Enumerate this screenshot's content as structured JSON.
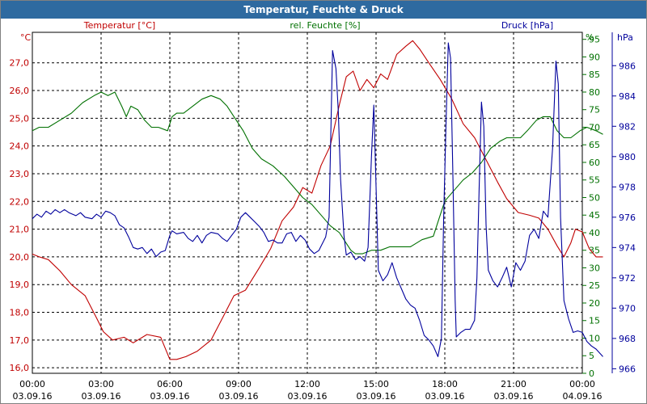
{
  "window": {
    "title": "Temperatur, Feuchte & Druck"
  },
  "colors": {
    "temperature": "#c00000",
    "humidity": "#007000",
    "pressure": "#00009c",
    "titlebar": "#2e6aa0",
    "grid": "#000000"
  },
  "chart_data": {
    "type": "line",
    "title": "Temperatur, Feuchte & Druck",
    "grid": true,
    "x_ticks": [
      {
        "time": "00:00",
        "date": "03.09.16"
      },
      {
        "time": "03:00",
        "date": "03.09.16"
      },
      {
        "time": "06:00",
        "date": "03.09.16"
      },
      {
        "time": "09:00",
        "date": "03.09.16"
      },
      {
        "time": "12:00",
        "date": "03.09.16"
      },
      {
        "time": "15:00",
        "date": "03.09.16"
      },
      {
        "time": "18:00",
        "date": "03.09.16"
      },
      {
        "time": "21:00",
        "date": "03.09.16"
      },
      {
        "time": "00:00",
        "date": "04.09.16"
      }
    ],
    "axes": {
      "temperature": {
        "label": "Temperatur [°C]",
        "unit": "°C",
        "range": [
          15.8,
          28.1
        ],
        "ticks": [
          "16,0",
          "17,0",
          "18,0",
          "19,0",
          "20,0",
          "21,0",
          "22,0",
          "23,0",
          "24,0",
          "25,0",
          "26,0",
          "27,0"
        ],
        "tick_values": [
          16,
          17,
          18,
          19,
          20,
          21,
          22,
          23,
          24,
          25,
          26,
          27
        ]
      },
      "humidity": {
        "label": "rel. Feuchte [%]",
        "unit": "%",
        "range": [
          0,
          97
        ],
        "ticks": [
          "0",
          "5",
          "10",
          "15",
          "20",
          "25",
          "30",
          "35",
          "40",
          "45",
          "50",
          "55",
          "60",
          "65",
          "70",
          "75",
          "80",
          "85",
          "90",
          "95"
        ],
        "tick_values": [
          0,
          5,
          10,
          15,
          20,
          25,
          30,
          35,
          40,
          45,
          50,
          55,
          60,
          65,
          70,
          75,
          80,
          85,
          90,
          95
        ]
      },
      "pressure": {
        "label": "Druck [hPa]",
        "unit": "hPa",
        "range": [
          965.7,
          988.2
        ],
        "ticks": [
          "966",
          "968",
          "970",
          "972",
          "974",
          "976",
          "978",
          "980",
          "982",
          "984",
          "986"
        ],
        "tick_values": [
          966,
          968,
          970,
          972,
          974,
          976,
          978,
          980,
          982,
          984,
          986
        ]
      }
    },
    "series": [
      {
        "name": "Temperatur [°C]",
        "axis": "temperature",
        "points": [
          [
            0,
            20.1
          ],
          [
            0.3,
            20.0
          ],
          [
            0.7,
            19.9
          ],
          [
            1.2,
            19.5
          ],
          [
            1.7,
            19.0
          ],
          [
            2.3,
            18.6
          ],
          [
            2.8,
            17.8
          ],
          [
            3.1,
            17.3
          ],
          [
            3.5,
            17.0
          ],
          [
            4.0,
            17.1
          ],
          [
            4.4,
            16.9
          ],
          [
            5.0,
            17.2
          ],
          [
            5.6,
            17.1
          ],
          [
            6.0,
            16.3
          ],
          [
            6.3,
            16.3
          ],
          [
            6.7,
            16.4
          ],
          [
            7.2,
            16.6
          ],
          [
            7.8,
            17.0
          ],
          [
            8.3,
            17.8
          ],
          [
            8.8,
            18.6
          ],
          [
            9.3,
            18.8
          ],
          [
            9.9,
            19.6
          ],
          [
            10.4,
            20.3
          ],
          [
            10.9,
            21.3
          ],
          [
            11.4,
            21.8
          ],
          [
            11.8,
            22.5
          ],
          [
            12.2,
            22.3
          ],
          [
            12.6,
            23.3
          ],
          [
            13.0,
            24.0
          ],
          [
            13.4,
            25.5
          ],
          [
            13.7,
            26.5
          ],
          [
            14.0,
            26.7
          ],
          [
            14.3,
            26.0
          ],
          [
            14.6,
            26.4
          ],
          [
            14.9,
            26.1
          ],
          [
            15.2,
            26.6
          ],
          [
            15.5,
            26.4
          ],
          [
            15.9,
            27.3
          ],
          [
            16.3,
            27.6
          ],
          [
            16.6,
            27.8
          ],
          [
            16.9,
            27.5
          ],
          [
            17.3,
            27.0
          ],
          [
            17.8,
            26.4
          ],
          [
            18.3,
            25.7
          ],
          [
            18.8,
            24.8
          ],
          [
            19.3,
            24.3
          ],
          [
            19.8,
            23.5
          ],
          [
            20.3,
            22.7
          ],
          [
            20.7,
            22.1
          ],
          [
            21.2,
            21.6
          ],
          [
            21.7,
            21.5
          ],
          [
            22.1,
            21.4
          ],
          [
            22.5,
            21.0
          ],
          [
            22.9,
            20.4
          ],
          [
            23.2,
            20.0
          ],
          [
            23.5,
            20.5
          ],
          [
            23.7,
            21.0
          ],
          [
            24.0,
            20.9
          ],
          [
            24.3,
            20.3
          ],
          [
            24.6,
            20.0
          ],
          [
            24.9,
            20.0
          ]
        ]
      },
      {
        "name": "rel. Feuchte [%]",
        "axis": "humidity",
        "points": [
          [
            0,
            69
          ],
          [
            0.3,
            70
          ],
          [
            0.7,
            70
          ],
          [
            1.2,
            72
          ],
          [
            1.7,
            74
          ],
          [
            2.2,
            77
          ],
          [
            2.7,
            79
          ],
          [
            3.0,
            80
          ],
          [
            3.3,
            79
          ],
          [
            3.6,
            80
          ],
          [
            3.9,
            76
          ],
          [
            4.1,
            73
          ],
          [
            4.3,
            76
          ],
          [
            4.6,
            75
          ],
          [
            4.9,
            72
          ],
          [
            5.2,
            70
          ],
          [
            5.5,
            70
          ],
          [
            5.9,
            69
          ],
          [
            6.1,
            73
          ],
          [
            6.3,
            74
          ],
          [
            6.6,
            74
          ],
          [
            7.0,
            76
          ],
          [
            7.4,
            78
          ],
          [
            7.8,
            79
          ],
          [
            8.2,
            78
          ],
          [
            8.5,
            76
          ],
          [
            8.8,
            73
          ],
          [
            9.2,
            69
          ],
          [
            9.6,
            64
          ],
          [
            10.0,
            61
          ],
          [
            10.5,
            59
          ],
          [
            11.0,
            56
          ],
          [
            11.4,
            53
          ],
          [
            11.8,
            50
          ],
          [
            12.2,
            48
          ],
          [
            12.6,
            45
          ],
          [
            13.0,
            42
          ],
          [
            13.4,
            40
          ],
          [
            13.6,
            38
          ],
          [
            13.9,
            35
          ],
          [
            14.1,
            34
          ],
          [
            14.4,
            34
          ],
          [
            14.8,
            35
          ],
          [
            15.2,
            35
          ],
          [
            15.6,
            36
          ],
          [
            16.0,
            36
          ],
          [
            16.5,
            36
          ],
          [
            17.0,
            38
          ],
          [
            17.5,
            39
          ],
          [
            17.8,
            45
          ],
          [
            18.0,
            49
          ],
          [
            18.4,
            52
          ],
          [
            18.8,
            55
          ],
          [
            19.2,
            57
          ],
          [
            19.6,
            60
          ],
          [
            20.0,
            64
          ],
          [
            20.4,
            66
          ],
          [
            20.7,
            67
          ],
          [
            21.0,
            67
          ],
          [
            21.3,
            67
          ],
          [
            21.6,
            69
          ],
          [
            22.0,
            72
          ],
          [
            22.3,
            73
          ],
          [
            22.6,
            73
          ],
          [
            22.9,
            69
          ],
          [
            23.2,
            67
          ],
          [
            23.5,
            67
          ],
          [
            23.9,
            69
          ],
          [
            24.2,
            70
          ],
          [
            24.6,
            69
          ],
          [
            24.9,
            68
          ]
        ]
      },
      {
        "name": "Druck [hPa]",
        "axis": "pressure",
        "points": [
          [
            0,
            975.9
          ],
          [
            0.2,
            976.2
          ],
          [
            0.4,
            976.0
          ],
          [
            0.6,
            976.4
          ],
          [
            0.8,
            976.2
          ],
          [
            1.0,
            976.5
          ],
          [
            1.2,
            976.3
          ],
          [
            1.4,
            976.5
          ],
          [
            1.6,
            976.3
          ],
          [
            1.9,
            976.1
          ],
          [
            2.1,
            976.3
          ],
          [
            2.3,
            976.0
          ],
          [
            2.6,
            975.9
          ],
          [
            2.8,
            976.2
          ],
          [
            3.0,
            976.0
          ],
          [
            3.2,
            976.4
          ],
          [
            3.4,
            976.3
          ],
          [
            3.6,
            976.1
          ],
          [
            3.8,
            975.5
          ],
          [
            4.0,
            975.3
          ],
          [
            4.2,
            974.7
          ],
          [
            4.4,
            974.0
          ],
          [
            4.6,
            973.9
          ],
          [
            4.8,
            974.0
          ],
          [
            5.0,
            973.6
          ],
          [
            5.2,
            973.9
          ],
          [
            5.4,
            973.4
          ],
          [
            5.6,
            973.7
          ],
          [
            5.8,
            973.8
          ],
          [
            6.0,
            974.8
          ],
          [
            6.1,
            975.1
          ],
          [
            6.3,
            974.9
          ],
          [
            6.6,
            975.0
          ],
          [
            6.8,
            974.6
          ],
          [
            7.0,
            974.4
          ],
          [
            7.2,
            974.8
          ],
          [
            7.4,
            974.3
          ],
          [
            7.6,
            974.8
          ],
          [
            7.8,
            975.0
          ],
          [
            8.1,
            974.9
          ],
          [
            8.3,
            974.6
          ],
          [
            8.5,
            974.4
          ],
          [
            8.7,
            974.8
          ],
          [
            8.9,
            975.2
          ],
          [
            9.1,
            976.0
          ],
          [
            9.3,
            976.3
          ],
          [
            9.5,
            976.0
          ],
          [
            9.7,
            975.7
          ],
          [
            9.9,
            975.4
          ],
          [
            10.1,
            975.0
          ],
          [
            10.3,
            974.4
          ],
          [
            10.5,
            974.5
          ],
          [
            10.7,
            974.3
          ],
          [
            10.9,
            974.3
          ],
          [
            11.1,
            974.9
          ],
          [
            11.3,
            975.0
          ],
          [
            11.5,
            974.4
          ],
          [
            11.7,
            974.8
          ],
          [
            11.9,
            974.5
          ],
          [
            12.1,
            973.9
          ],
          [
            12.3,
            973.6
          ],
          [
            12.5,
            973.8
          ],
          [
            12.8,
            974.7
          ],
          [
            12.95,
            976.0
          ],
          [
            13.1,
            987.0
          ],
          [
            13.25,
            985.8
          ],
          [
            13.35,
            983.0
          ],
          [
            13.45,
            978.5
          ],
          [
            13.6,
            974.8
          ],
          [
            13.7,
            973.5
          ],
          [
            13.9,
            973.7
          ],
          [
            14.1,
            973.2
          ],
          [
            14.3,
            973.4
          ],
          [
            14.5,
            973.1
          ],
          [
            14.65,
            974.0
          ],
          [
            14.8,
            980.0
          ],
          [
            14.9,
            983.4
          ],
          [
            15.0,
            978.0
          ],
          [
            15.1,
            972.5
          ],
          [
            15.3,
            971.8
          ],
          [
            15.5,
            972.2
          ],
          [
            15.7,
            973.0
          ],
          [
            15.9,
            972.0
          ],
          [
            16.1,
            971.3
          ],
          [
            16.3,
            970.6
          ],
          [
            16.5,
            970.2
          ],
          [
            16.7,
            970.0
          ],
          [
            16.9,
            969.2
          ],
          [
            17.1,
            968.2
          ],
          [
            17.3,
            967.9
          ],
          [
            17.5,
            967.5
          ],
          [
            17.7,
            966.8
          ],
          [
            17.85,
            968.0
          ],
          [
            17.95,
            976.0
          ],
          [
            18.05,
            982.0
          ],
          [
            18.15,
            987.5
          ],
          [
            18.25,
            986.5
          ],
          [
            18.35,
            979.0
          ],
          [
            18.45,
            970.5
          ],
          [
            18.5,
            968.1
          ],
          [
            18.7,
            968.4
          ],
          [
            18.9,
            968.6
          ],
          [
            19.1,
            968.6
          ],
          [
            19.3,
            969.2
          ],
          [
            19.4,
            972.0
          ],
          [
            19.5,
            978.0
          ],
          [
            19.6,
            983.6
          ],
          [
            19.7,
            982.0
          ],
          [
            19.8,
            975.5
          ],
          [
            19.9,
            972.5
          ],
          [
            20.1,
            971.8
          ],
          [
            20.3,
            971.4
          ],
          [
            20.5,
            972.0
          ],
          [
            20.7,
            972.7
          ],
          [
            20.9,
            971.4
          ],
          [
            21.1,
            973.0
          ],
          [
            21.3,
            972.5
          ],
          [
            21.5,
            973.1
          ],
          [
            21.7,
            974.8
          ],
          [
            21.9,
            975.2
          ],
          [
            22.1,
            974.6
          ],
          [
            22.3,
            976.4
          ],
          [
            22.5,
            976.0
          ],
          [
            22.7,
            980.5
          ],
          [
            22.85,
            986.3
          ],
          [
            22.95,
            984.8
          ],
          [
            23.05,
            976.0
          ],
          [
            23.2,
            970.5
          ],
          [
            23.4,
            969.3
          ],
          [
            23.6,
            968.4
          ],
          [
            23.8,
            968.5
          ],
          [
            24.0,
            968.4
          ],
          [
            24.2,
            967.8
          ],
          [
            24.4,
            967.5
          ],
          [
            24.6,
            967.3
          ],
          [
            24.9,
            966.8
          ]
        ]
      }
    ]
  }
}
